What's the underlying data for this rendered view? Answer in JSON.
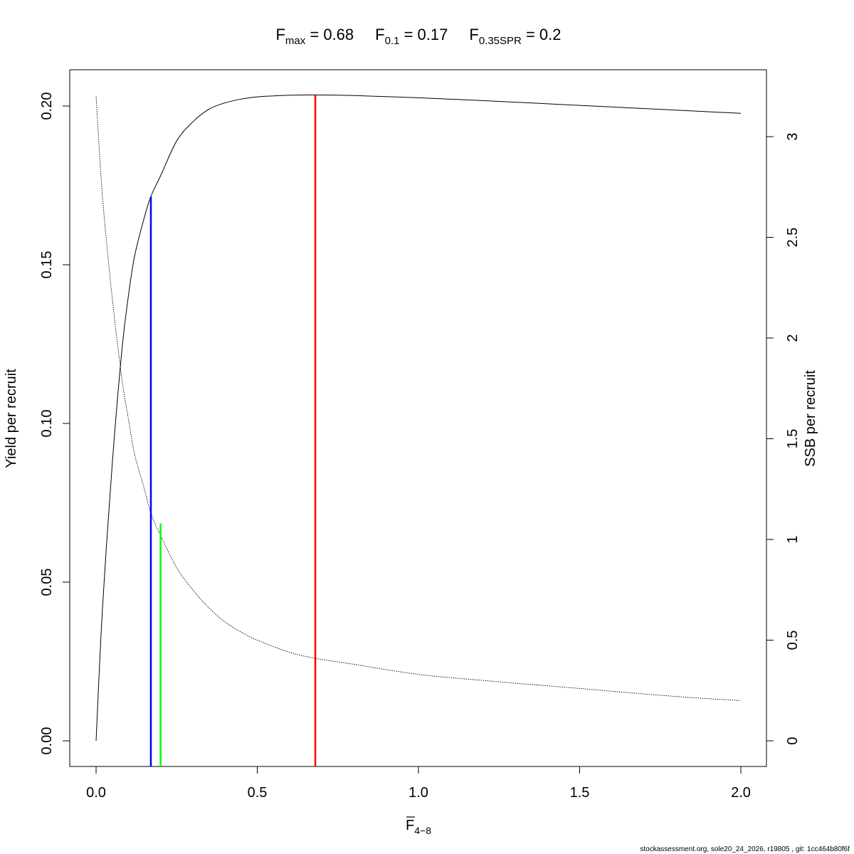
{
  "title": {
    "fmax_main": "F",
    "fmax_sub": "max",
    "fmax_value": " = 0.68",
    "f01_main": "F",
    "f01_sub": "0.1",
    "f01_value": " = 0.17",
    "fspr_main": "F",
    "fspr_sub": "0.35SPR",
    "fspr_value": " = 0.2"
  },
  "axes": {
    "x_label_main": "F",
    "x_label_sub": "4−8",
    "y_left_label": "Yield per recruit",
    "y_right_label": "SSB per recruit",
    "x_ticks": [
      "0.0",
      "0.5",
      "1.0",
      "1.5",
      "2.0"
    ],
    "y_left_ticks": [
      "0.00",
      "0.05",
      "0.10",
      "0.15",
      "0.20"
    ],
    "y_right_ticks": [
      "0",
      "0.5",
      "1",
      "1.5",
      "2",
      "2.5",
      "3"
    ]
  },
  "footer": "stockassessment.org, sole20_24_2026, r19805 , git: 1cc464b80f6f",
  "chart_data": {
    "type": "line",
    "xlim": [
      0,
      2
    ],
    "ylim_left": [
      0,
      0.2
    ],
    "ylim_right": [
      0,
      3
    ],
    "grid": false,
    "series": [
      {
        "axis": "left",
        "line": "solid",
        "color": "#000000",
        "x": [
          0,
          0.02,
          0.05,
          0.08,
          0.1,
          0.12,
          0.15,
          0.17,
          0.2,
          0.25,
          0.3,
          0.35,
          0.4,
          0.45,
          0.5,
          0.55,
          0.6,
          0.68,
          0.8,
          1.0,
          1.2,
          1.5,
          1.8,
          2.0
        ],
        "values": [
          0,
          0.042,
          0.087,
          0.123,
          0.14,
          0.153,
          0.165,
          0.1715,
          0.178,
          0.189,
          0.195,
          0.199,
          0.201,
          0.2022,
          0.2029,
          0.2032,
          0.2034,
          0.2035,
          0.2033,
          0.2026,
          0.2017,
          0.2002,
          0.1987,
          0.1977
        ]
      },
      {
        "axis": "right",
        "line": "dotted",
        "color": "#000000",
        "x": [
          0,
          0.02,
          0.05,
          0.08,
          0.1,
          0.12,
          0.15,
          0.17,
          0.2,
          0.25,
          0.3,
          0.35,
          0.4,
          0.45,
          0.5,
          0.6,
          0.68,
          0.8,
          1.0,
          1.2,
          1.5,
          1.8,
          2.0
        ],
        "values": [
          3.2,
          2.7,
          2.2,
          1.8,
          1.6,
          1.42,
          1.25,
          1.13,
          1.02,
          0.86,
          0.75,
          0.66,
          0.59,
          0.54,
          0.5,
          0.44,
          0.41,
          0.38,
          0.33,
          0.3,
          0.26,
          0.22,
          0.2
        ]
      }
    ],
    "reference_lines": [
      {
        "x": 0.68,
        "y_top": 0.2035,
        "color": "#ff0000"
      },
      {
        "x": 0.17,
        "y_top": 0.1715,
        "color": "#0000ff"
      },
      {
        "x": 0.2,
        "y_top": 0.0685,
        "color": "#00ff00"
      }
    ]
  }
}
